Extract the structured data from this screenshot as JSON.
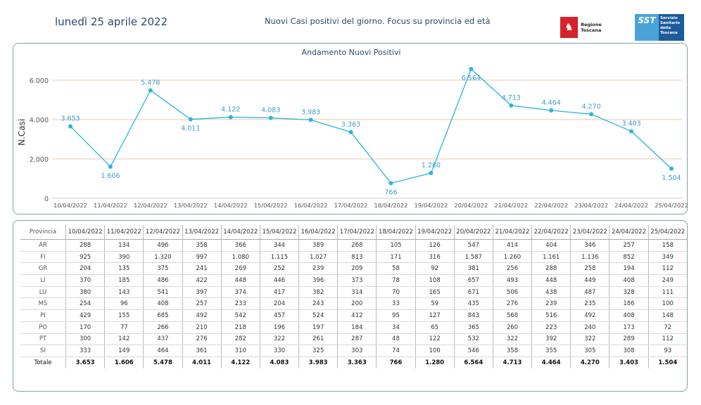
{
  "header": {
    "date": "lunedì 25 aprile 2022",
    "subtitle": "Nuovi Casi positivi del giorno. Focus su provincia ed età",
    "logo_rt_text": "Regione Toscana",
    "logo_sst_badge": "SST",
    "logo_sst_text": "Servizio Sanitario della Toscana"
  },
  "colors": {
    "line": "#29b6d6",
    "grid": "#e8c9a8",
    "label": "#3d9fc4",
    "border": "#7fa7a0"
  },
  "chart_data": {
    "type": "line",
    "title": "Andamento Nuovi Positivi",
    "ylabel": "N.Casi",
    "xlabel": "",
    "ylim": [
      0,
      7000
    ],
    "yticks": [
      0,
      2000,
      4000,
      6000
    ],
    "ytick_labels": [
      "0",
      "2.000",
      "4.000",
      "6.000"
    ],
    "grid": true,
    "categories": [
      "10/04/2022",
      "11/04/2022",
      "12/04/2022",
      "13/04/2022",
      "14/04/2022",
      "15/04/2022",
      "16/04/2022",
      "17/04/2022",
      "18/04/2022",
      "19/04/2022",
      "20/04/2022",
      "21/04/2022",
      "22/04/2022",
      "23/04/2022",
      "24/04/2022",
      "25/04/2022"
    ],
    "values": [
      3653,
      1606,
      5478,
      4011,
      4122,
      4083,
      3983,
      3363,
      766,
      1280,
      6564,
      4713,
      4464,
      4270,
      3403,
      1504
    ],
    "value_labels": [
      "3.653",
      "1.606",
      "5.478",
      "4.011",
      "4.122",
      "4.083",
      "3.983",
      "3.363",
      "766",
      "1.280",
      "6.564",
      "4.713",
      "4.464",
      "4.270",
      "3.403",
      "1.504"
    ],
    "label_pos": [
      "above",
      "below",
      "above",
      "below",
      "above",
      "above",
      "above",
      "above",
      "below",
      "above",
      "below",
      "above",
      "above",
      "above",
      "above",
      "below"
    ]
  },
  "table": {
    "header_label": "Provincia",
    "dates": [
      "10/04/2022",
      "11/04/2022",
      "12/04/2022",
      "13/04/2022",
      "14/04/2022",
      "15/04/2022",
      "16/04/2022",
      "17/04/2022",
      "18/04/2022",
      "19/04/2022",
      "20/04/2022",
      "21/04/2022",
      "22/04/2022",
      "23/04/2022",
      "24/04/2022",
      "25/04/2022"
    ],
    "rows": [
      {
        "prov": "AR",
        "values": [
          "288",
          "134",
          "496",
          "358",
          "366",
          "344",
          "389",
          "268",
          "105",
          "126",
          "547",
          "414",
          "404",
          "346",
          "257",
          "158"
        ]
      },
      {
        "prov": "FI",
        "values": [
          "925",
          "390",
          "1.320",
          "997",
          "1.080",
          "1.115",
          "1.027",
          "813",
          "171",
          "316",
          "1.587",
          "1.260",
          "1.161",
          "1.136",
          "852",
          "349"
        ]
      },
      {
        "prov": "GR",
        "values": [
          "204",
          "135",
          "375",
          "241",
          "269",
          "252",
          "239",
          "209",
          "58",
          "92",
          "381",
          "256",
          "288",
          "258",
          "194",
          "112"
        ]
      },
      {
        "prov": "LI",
        "values": [
          "370",
          "185",
          "486",
          "422",
          "448",
          "446",
          "396",
          "373",
          "78",
          "108",
          "657",
          "493",
          "448",
          "449",
          "408",
          "249"
        ]
      },
      {
        "prov": "LU",
        "values": [
          "380",
          "143",
          "541",
          "397",
          "374",
          "417",
          "382",
          "314",
          "70",
          "165",
          "671",
          "506",
          "438",
          "487",
          "328",
          "111"
        ]
      },
      {
        "prov": "MS",
        "values": [
          "254",
          "96",
          "408",
          "257",
          "233",
          "204",
          "243",
          "200",
          "33",
          "59",
          "435",
          "276",
          "239",
          "235",
          "186",
          "100"
        ]
      },
      {
        "prov": "PI",
        "values": [
          "429",
          "155",
          "685",
          "492",
          "542",
          "457",
          "524",
          "412",
          "95",
          "127",
          "843",
          "568",
          "516",
          "492",
          "408",
          "148"
        ]
      },
      {
        "prov": "PO",
        "values": [
          "170",
          "77",
          "266",
          "210",
          "218",
          "196",
          "197",
          "184",
          "34",
          "65",
          "365",
          "260",
          "223",
          "240",
          "173",
          "72"
        ]
      },
      {
        "prov": "PT",
        "values": [
          "300",
          "142",
          "437",
          "276",
          "282",
          "322",
          "261",
          "287",
          "48",
          "122",
          "532",
          "322",
          "392",
          "322",
          "289",
          "112"
        ]
      },
      {
        "prov": "SI",
        "values": [
          "333",
          "149",
          "464",
          "361",
          "310",
          "330",
          "325",
          "303",
          "74",
          "100",
          "546",
          "358",
          "355",
          "305",
          "308",
          "93"
        ]
      }
    ],
    "total": {
      "prov": "Totale",
      "values": [
        "3.653",
        "1.606",
        "5.478",
        "4.011",
        "4.122",
        "4.083",
        "3.983",
        "3.363",
        "766",
        "1.280",
        "6.564",
        "4.713",
        "4.464",
        "4.270",
        "3.403",
        "1.504"
      ]
    }
  }
}
